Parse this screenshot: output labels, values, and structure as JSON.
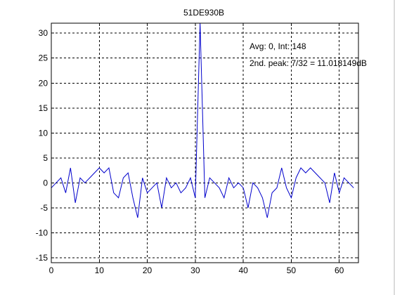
{
  "chart_data": {
    "type": "line",
    "title": "51DE930B",
    "xlabel": "",
    "ylabel": "",
    "xlim": [
      0,
      64
    ],
    "ylim": [
      -16,
      32
    ],
    "xticks": [
      0,
      10,
      20,
      30,
      40,
      50,
      60
    ],
    "yticks": [
      -15,
      -10,
      -5,
      0,
      5,
      10,
      15,
      20,
      25,
      30
    ],
    "grid": true,
    "grid_style": "dashed",
    "line_color": "#0000cc",
    "annotations": [
      "Avg: 0, Int: 148",
      "2nd. peak: 7/32 = 11.018149dB"
    ],
    "x": [
      0,
      1,
      2,
      3,
      4,
      5,
      6,
      7,
      8,
      9,
      10,
      11,
      12,
      13,
      14,
      15,
      16,
      17,
      18,
      19,
      20,
      21,
      22,
      23,
      24,
      25,
      26,
      27,
      28,
      29,
      30,
      31,
      32,
      33,
      34,
      35,
      36,
      37,
      38,
      39,
      40,
      41,
      42,
      43,
      44,
      45,
      46,
      47,
      48,
      49,
      50,
      51,
      52,
      53,
      54,
      55,
      56,
      57,
      58,
      59,
      60,
      61,
      62,
      63
    ],
    "series": [
      {
        "values": [
          -1,
          0,
          1,
          -2,
          3,
          -4,
          1,
          0,
          1,
          2,
          3,
          2,
          3,
          -2,
          -3,
          1,
          2,
          -3,
          -7,
          1,
          -2,
          -1,
          0,
          -5,
          1,
          -1,
          0,
          -2,
          -1,
          1,
          -3,
          32,
          -3,
          1,
          0,
          -1,
          -3,
          1,
          -1,
          0,
          -1,
          -5,
          0,
          -1,
          -3,
          -7,
          -2,
          -1,
          3,
          -1,
          -3,
          1,
          3,
          2,
          3,
          2,
          1,
          0,
          -4,
          2,
          -2,
          1,
          0,
          -1
        ]
      }
    ]
  }
}
